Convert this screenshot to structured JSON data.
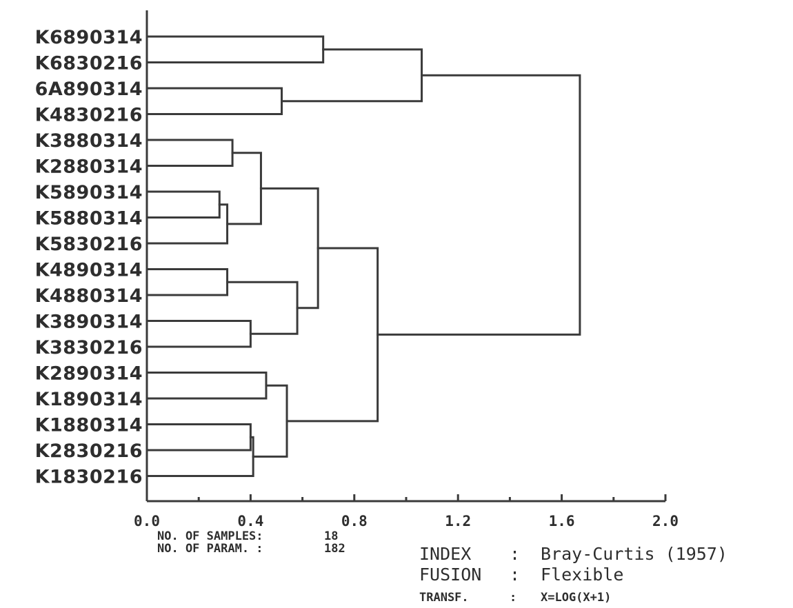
{
  "chart_data": {
    "type": "dendrogram",
    "orientation": "horizontal",
    "xlim": [
      0.0,
      2.0
    ],
    "x_ticks": [
      "0.0",
      "0.4",
      "0.8",
      "1.2",
      "1.6",
      "2.0"
    ],
    "x_tick_values": [
      0.0,
      0.4,
      0.8,
      1.2,
      1.6,
      2.0
    ],
    "leaves": [
      "K6890314",
      "K6830216",
      "6A890314",
      "K4830216",
      "K3880314",
      "K2880314",
      "K5890314",
      "K5880314",
      "K5830216",
      "K4890314",
      "K4880314",
      "K3890314",
      "K3830216",
      "K2890314",
      "K1890314",
      "K1880314",
      "K2830216",
      "K1830216"
    ],
    "merges": [
      {
        "left": "K5890314",
        "right": "K5880314",
        "height": 0.28
      },
      {
        "left": "K4890314",
        "right": "K4880314",
        "height": 0.31
      },
      {
        "left": "m0",
        "right": "K5830216",
        "height": 0.31
      },
      {
        "left": "K3880314",
        "right": "K2880314",
        "height": 0.33
      },
      {
        "left": "K1880314",
        "right": "K2830216",
        "height": 0.4
      },
      {
        "left": "K3890314",
        "right": "K3830216",
        "height": 0.4
      },
      {
        "left": "m4",
        "right": "K1830216",
        "height": 0.41
      },
      {
        "left": "m3",
        "right": "m2",
        "height": 0.44
      },
      {
        "left": "K2890314",
        "right": "K1890314",
        "height": 0.46
      },
      {
        "left": "6A890314",
        "right": "K4830216",
        "height": 0.52
      },
      {
        "left": "m8",
        "right": "m6",
        "height": 0.54
      },
      {
        "left": "m1",
        "right": "m5",
        "height": 0.58
      },
      {
        "left": "m7",
        "right": "m11",
        "height": 0.66
      },
      {
        "left": "K6890314",
        "right": "K6830216",
        "height": 0.68
      },
      {
        "left": "m12",
        "right": "m10",
        "height": 0.89
      },
      {
        "left": "m13",
        "right": "m9",
        "height": 1.06
      },
      {
        "left": "m15",
        "right": "m14",
        "height": 1.67
      }
    ]
  },
  "info": {
    "samples_label": "NO. OF SAMPLES:",
    "samples_value": "18",
    "params_label": "NO. OF PARAM. :",
    "params_value": "182",
    "index_label": "INDEX",
    "index_sep": ":",
    "index_value": "Bray-Curtis (1957)",
    "fusion_label": "FUSION",
    "fusion_sep": ":",
    "fusion_value": "Flexible",
    "transf_label": "TRANSF.",
    "transf_sep": ":",
    "transf_value": "X=LOG(X+1)"
  }
}
